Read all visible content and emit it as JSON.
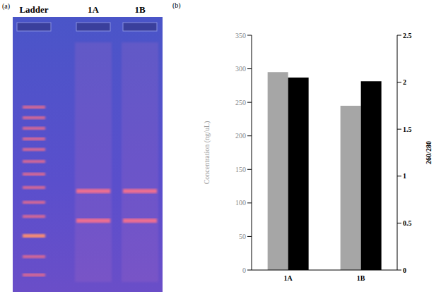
{
  "gel": {
    "label": "(a)",
    "lanes": [
      "Ladder",
      "1A",
      "1B"
    ]
  },
  "chart_data": {
    "type": "bar",
    "title": "(b)",
    "categories": [
      "1A",
      "1B"
    ],
    "y_label": "Concentration (ng/uL)",
    "y2_label": "260/280",
    "series": [
      {
        "name": "Concentration (ng/uL)",
        "color": "#a6a6a6",
        "values": [
          295,
          245
        ]
      },
      {
        "name": "260/280",
        "color": "#000000",
        "values": [
          2.05,
          2.01
        ],
        "axis": "y2"
      }
    ],
    "ylim": [
      0,
      350
    ],
    "yticks": [
      0,
      50,
      100,
      150,
      200,
      250,
      300,
      350
    ],
    "y2lim": [
      0,
      2.5
    ],
    "y2ticks": [
      0,
      0.5,
      1,
      1.5,
      2,
      2.5
    ],
    "grid": false
  }
}
